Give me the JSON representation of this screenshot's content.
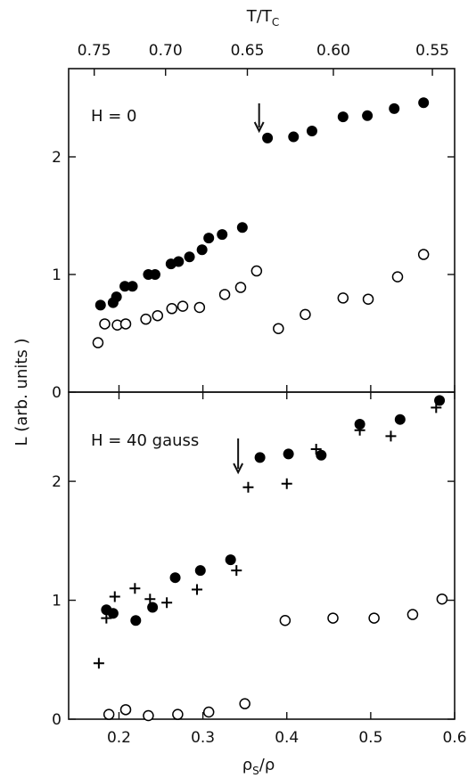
{
  "chart_data": {
    "type": "scatter",
    "x_axis": {
      "label_main": "ρ",
      "label_sub": "S",
      "label_tail": "/ρ",
      "range": [
        0.14,
        0.6
      ],
      "ticks": [
        0.2,
        0.3,
        0.4,
        0.5,
        0.6
      ],
      "tick_labels": [
        "0.2",
        "0.3",
        "0.4",
        "0.5",
        "0.6"
      ]
    },
    "top_axis": {
      "label_main": "T/T",
      "label_sub": "C",
      "ticks": [
        0.75,
        0.7,
        0.65,
        0.6,
        0.55
      ],
      "tick_labels": [
        "0.75",
        "0.70",
        "0.65",
        "0.60",
        "0.55"
      ],
      "tick_positions": [
        0.1705,
        0.2555,
        0.353,
        0.4555,
        0.5735
      ]
    },
    "y_axis": {
      "label": "L  (arb. units )"
    },
    "panels": [
      {
        "label": "H = 0",
        "ylim": [
          0,
          2.75
        ],
        "ticks": [
          0,
          1,
          2
        ],
        "tick_labels": [
          "0",
          "1",
          "2"
        ],
        "arrow_x": 0.367,
        "series": [
          {
            "marker": "filled-circle",
            "points": [
              [
                0.178,
                0.74
              ],
              [
                0.193,
                0.76
              ],
              [
                0.197,
                0.81
              ],
              [
                0.207,
                0.9
              ],
              [
                0.216,
                0.9
              ],
              [
                0.235,
                1.0
              ],
              [
                0.243,
                1.0
              ],
              [
                0.262,
                1.09
              ],
              [
                0.271,
                1.11
              ],
              [
                0.284,
                1.15
              ],
              [
                0.299,
                1.21
              ],
              [
                0.307,
                1.31
              ],
              [
                0.323,
                1.34
              ],
              [
                0.347,
                1.4
              ],
              [
                0.377,
                2.16
              ],
              [
                0.408,
                2.17
              ],
              [
                0.43,
                2.22
              ],
              [
                0.467,
                2.34
              ],
              [
                0.496,
                2.35
              ],
              [
                0.528,
                2.41
              ],
              [
                0.563,
                2.46
              ]
            ]
          },
          {
            "marker": "open-circle",
            "points": [
              [
                0.175,
                0.42
              ],
              [
                0.183,
                0.58
              ],
              [
                0.198,
                0.57
              ],
              [
                0.208,
                0.58
              ],
              [
                0.232,
                0.62
              ],
              [
                0.246,
                0.65
              ],
              [
                0.263,
                0.71
              ],
              [
                0.276,
                0.73
              ],
              [
                0.296,
                0.72
              ],
              [
                0.326,
                0.83
              ],
              [
                0.345,
                0.89
              ],
              [
                0.364,
                1.03
              ],
              [
                0.39,
                0.54
              ],
              [
                0.422,
                0.66
              ],
              [
                0.467,
                0.8
              ],
              [
                0.497,
                0.79
              ],
              [
                0.532,
                0.98
              ],
              [
                0.563,
                1.17
              ]
            ]
          }
        ]
      },
      {
        "label": "H = 40 gauss",
        "ylim": [
          0,
          2.75
        ],
        "ticks": [
          0,
          1,
          2
        ],
        "tick_labels": [
          "0",
          "1",
          "2"
        ],
        "arrow_x": 0.342,
        "series": [
          {
            "marker": "filled-circle",
            "points": [
              [
                0.185,
                0.92
              ],
              [
                0.193,
                0.89
              ],
              [
                0.22,
                0.83
              ],
              [
                0.24,
                0.94
              ],
              [
                0.267,
                1.19
              ],
              [
                0.297,
                1.25
              ],
              [
                0.333,
                1.34
              ],
              [
                0.368,
                2.2
              ],
              [
                0.402,
                2.23
              ],
              [
                0.441,
                2.22
              ],
              [
                0.487,
                2.48
              ],
              [
                0.535,
                2.52
              ],
              [
                0.582,
                2.68
              ]
            ]
          },
          {
            "marker": "plus",
            "points": [
              [
                0.176,
                0.47
              ],
              [
                0.185,
                0.85
              ],
              [
                0.195,
                1.03
              ],
              [
                0.219,
                1.1
              ],
              [
                0.237,
                1.01
              ],
              [
                0.257,
                0.98
              ],
              [
                0.293,
                1.09
              ],
              [
                0.34,
                1.25
              ],
              [
                0.354,
                1.95
              ],
              [
                0.4,
                1.98
              ],
              [
                0.435,
                2.27
              ],
              [
                0.487,
                2.43
              ],
              [
                0.524,
                2.38
              ],
              [
                0.578,
                2.62
              ]
            ]
          },
          {
            "marker": "open-circle",
            "points": [
              [
                0.188,
                0.04
              ],
              [
                0.208,
                0.08
              ],
              [
                0.235,
                0.03
              ],
              [
                0.27,
                0.04
              ],
              [
                0.307,
                0.06
              ],
              [
                0.35,
                0.13
              ],
              [
                0.398,
                0.83
              ],
              [
                0.455,
                0.85
              ],
              [
                0.504,
                0.85
              ],
              [
                0.55,
                0.88
              ],
              [
                0.585,
                1.01
              ]
            ]
          }
        ]
      }
    ]
  }
}
